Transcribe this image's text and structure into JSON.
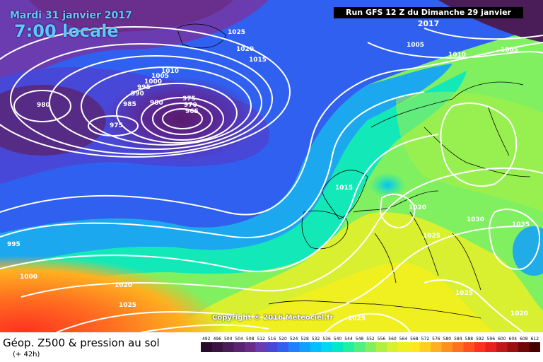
{
  "header": {
    "date": "Mardi 31 janvier 2017",
    "local_time": "7:00 locale",
    "run_info": "Run GFS 12 Z du Dimanche 29 janvier 2017"
  },
  "copyright": "Copyright © 2016 Meteociel.fr",
  "legend": {
    "title": "Géop. Z500 & pression au sol",
    "subtitle": "(+ 42h)",
    "levels": [
      492,
      496,
      500,
      504,
      508,
      512,
      516,
      520,
      524,
      528,
      532,
      536,
      540,
      544,
      548,
      552,
      556,
      560,
      564,
      568,
      572,
      576,
      580,
      584,
      588,
      592,
      596,
      600,
      604,
      608,
      612
    ],
    "colors": [
      "#2a0a2a",
      "#3a1440",
      "#4a1c58",
      "#5a2470",
      "#6a2c88",
      "#6a3cb0",
      "#4848d8",
      "#3060f0",
      "#2080ff",
      "#10a0ff",
      "#00c0ff",
      "#00d8f0",
      "#00e8c8",
      "#20f0a0",
      "#50f080",
      "#80f060",
      "#b0f040",
      "#d8f030",
      "#f0f020",
      "#ffe820",
      "#ffd020",
      "#ffb020",
      "#ff9020",
      "#ff7020",
      "#ff5020",
      "#ff3020",
      "#e82020",
      "#c01818",
      "#981010",
      "#700808",
      "#480000"
    ]
  },
  "pressure_labels": [
    "1025",
    "1020",
    "1015",
    "1010",
    "1005",
    "1000",
    "995",
    "990",
    "985",
    "980",
    "975",
    "970",
    "965",
    "975",
    "980",
    "1005",
    "1010",
    "1005",
    "1015",
    "1020",
    "1030",
    "1035",
    "1025",
    "1025",
    "1020",
    "995",
    "1000",
    "1020",
    "1025",
    "1025"
  ]
}
